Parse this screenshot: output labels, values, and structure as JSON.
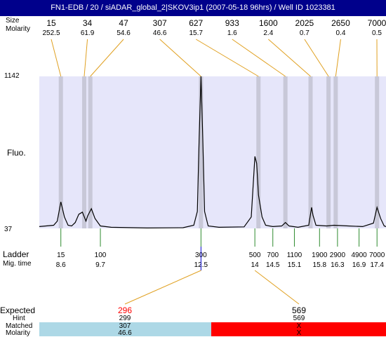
{
  "title": "FN1-EDB / 20 / siADAR_global_2|SKOV3ip1 (2007-05-18 96hrs) / Well ID 1023381",
  "labels": {
    "peak_size": "Size",
    "peak_molarity": "Molarity",
    "fluo": "Fluo.",
    "ladder": "Ladder",
    "mig_time": "Mig. time",
    "expected": "Expected",
    "hint": "Hint",
    "matched": "Matched",
    "molarity_bottom": "Molarity"
  },
  "colors": {
    "title_bg": "#00008b",
    "plot_bg": "#e6e6fa",
    "band": "#c8c8d8",
    "orange_line": "#e0a020",
    "green_tick": "#2e8b2e",
    "matched_ok": "#add8e6",
    "matched_bad": "#ff0000",
    "expected_red": "#ff0000"
  },
  "chart_data": {
    "type": "line",
    "xlabel": "Mig. time",
    "ylabel": "Fluo.",
    "ylim": [
      37,
      1142
    ],
    "y_ticks": [
      "1142",
      "37"
    ],
    "peaks": [
      {
        "size": "15",
        "molarity": "252.5",
        "time": 8.6
      },
      {
        "size": "34",
        "molarity": "61.9",
        "time": 9.25
      },
      {
        "size": "47",
        "molarity": "54.6",
        "time": 9.42
      },
      {
        "size": "307",
        "molarity": "46.6",
        "time": 12.5
      },
      {
        "size": "627",
        "molarity": "15.7",
        "time": 14.1
      },
      {
        "size": "933",
        "molarity": "1.6",
        "time": 14.85
      },
      {
        "size": "1600",
        "molarity": "2.4",
        "time": 15.55
      },
      {
        "size": "2025",
        "molarity": "0.7",
        "time": 16.05
      },
      {
        "size": "2650",
        "molarity": "0.4",
        "time": 16.25
      },
      {
        "size": "7000",
        "molarity": "0.5",
        "time": 17.4
      }
    ],
    "ladder": [
      {
        "size": "15",
        "time": "8.6"
      },
      {
        "size": "100",
        "time": "9.7"
      },
      {
        "size": "300",
        "time": "12.5"
      },
      {
        "size": "500",
        "time": "14"
      },
      {
        "size": "700",
        "time": "14.5"
      },
      {
        "size": "1100",
        "time": "15.1"
      },
      {
        "size": "1900",
        "time": "15.8"
      },
      {
        "size": "2900",
        "time": "16.3"
      },
      {
        "size": "4900",
        "time": "16.9"
      },
      {
        "size": "7000",
        "time": "17.4"
      }
    ],
    "trace": [
      [
        8.0,
        50
      ],
      [
        8.4,
        60
      ],
      [
        8.5,
        90
      ],
      [
        8.6,
        230
      ],
      [
        8.7,
        120
      ],
      [
        8.8,
        60
      ],
      [
        8.9,
        55
      ],
      [
        9.0,
        80
      ],
      [
        9.1,
        140
      ],
      [
        9.2,
        155
      ],
      [
        9.3,
        90
      ],
      [
        9.35,
        130
      ],
      [
        9.45,
        180
      ],
      [
        9.55,
        110
      ],
      [
        9.7,
        55
      ],
      [
        10.0,
        45
      ],
      [
        11.0,
        40
      ],
      [
        12.0,
        42
      ],
      [
        12.3,
        60
      ],
      [
        12.4,
        160
      ],
      [
        12.45,
        700
      ],
      [
        12.5,
        1142
      ],
      [
        12.55,
        700
      ],
      [
        12.6,
        160
      ],
      [
        12.7,
        55
      ],
      [
        13.0,
        45
      ],
      [
        13.7,
        48
      ],
      [
        13.9,
        120
      ],
      [
        14.0,
        560
      ],
      [
        14.05,
        510
      ],
      [
        14.1,
        280
      ],
      [
        14.2,
        120
      ],
      [
        14.3,
        60
      ],
      [
        14.5,
        50
      ],
      [
        14.75,
        55
      ],
      [
        14.85,
        80
      ],
      [
        14.95,
        55
      ],
      [
        15.2,
        45
      ],
      [
        15.5,
        60
      ],
      [
        15.58,
        190
      ],
      [
        15.62,
        130
      ],
      [
        15.7,
        60
      ],
      [
        16.0,
        55
      ],
      [
        16.2,
        60
      ],
      [
        16.6,
        55
      ],
      [
        17.0,
        50
      ],
      [
        17.3,
        75
      ],
      [
        17.4,
        190
      ],
      [
        17.5,
        110
      ],
      [
        17.6,
        55
      ],
      [
        17.65,
        50
      ]
    ]
  },
  "bottom": {
    "expected": [
      {
        "value": "296",
        "hint": "299",
        "matched": "307",
        "molarity": "46.6",
        "ok": true
      },
      {
        "value": "569",
        "hint": "569",
        "matched": "X",
        "molarity": "X",
        "ok": false
      }
    ]
  }
}
